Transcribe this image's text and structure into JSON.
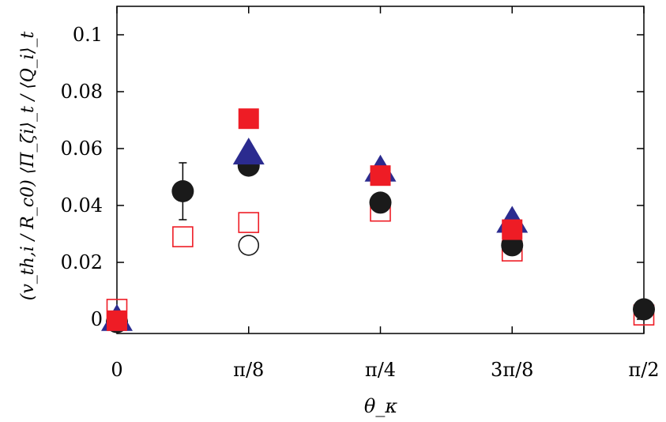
{
  "chart_data": {
    "type": "scatter",
    "title": "",
    "xlabel": "θ_κ",
    "ylabel": "(v_th,i / R_c0) ⟨Π_ζi⟩_t / ⟨Q_i⟩_t",
    "xlim": [
      0,
      1.5707963
    ],
    "ylim": [
      -0.005,
      0.11
    ],
    "x_ticks": [
      {
        "value": 0,
        "label": "0"
      },
      {
        "value": 0.3926991,
        "label": "π/8"
      },
      {
        "value": 0.7853982,
        "label": "π/4"
      },
      {
        "value": 1.1780972,
        "label": "3π/8"
      },
      {
        "value": 1.5707963,
        "label": "π/2"
      }
    ],
    "y_ticks": [
      {
        "value": 0,
        "label": "0"
      },
      {
        "value": 0.02,
        "label": "0.02"
      },
      {
        "value": 0.04,
        "label": "0.04"
      },
      {
        "value": 0.06,
        "label": "0.06"
      },
      {
        "value": 0.08,
        "label": "0.08"
      },
      {
        "value": 0.1,
        "label": "0.1"
      }
    ],
    "grid": false,
    "legend": "none",
    "series": [
      {
        "marker": "filled-circle",
        "color": "#1a1a1a",
        "points": [
          {
            "x": 0,
            "y": -0.001
          },
          {
            "x": 0.1963495,
            "y": 0.045,
            "err": 0.01
          },
          {
            "x": 0.3926991,
            "y": 0.054
          },
          {
            "x": 0.7853982,
            "y": 0.041
          },
          {
            "x": 1.1780972,
            "y": 0.026
          },
          {
            "x": 1.5707963,
            "y": 0.0035
          }
        ]
      },
      {
        "marker": "open-circle",
        "color": "#1a1a1a",
        "points": [
          {
            "x": 0.3926991,
            "y": 0.026
          }
        ]
      },
      {
        "marker": "filled-triangle",
        "color": "#2b2b8f",
        "points": [
          {
            "x": 0,
            "y": -0.0005
          },
          {
            "x": 0.3926991,
            "y": 0.058
          },
          {
            "x": 0.7853982,
            "y": 0.052
          },
          {
            "x": 1.1780972,
            "y": 0.034
          }
        ]
      },
      {
        "marker": "filled-square",
        "color": "#ee1c25",
        "points": [
          {
            "x": 0,
            "y": -0.0005
          },
          {
            "x": 0.3926991,
            "y": 0.0705
          },
          {
            "x": 0.7853982,
            "y": 0.0505
          },
          {
            "x": 1.1780972,
            "y": 0.0315
          }
        ]
      },
      {
        "marker": "open-square",
        "color": "#ee1c25",
        "points": [
          {
            "x": 0,
            "y": 0.0035
          },
          {
            "x": 0.1963495,
            "y": 0.029
          },
          {
            "x": 0.3926991,
            "y": 0.034
          },
          {
            "x": 0.7853982,
            "y": 0.038
          },
          {
            "x": 1.1780972,
            "y": 0.024
          },
          {
            "x": 1.5707963,
            "y": 0.0015
          }
        ]
      }
    ]
  }
}
